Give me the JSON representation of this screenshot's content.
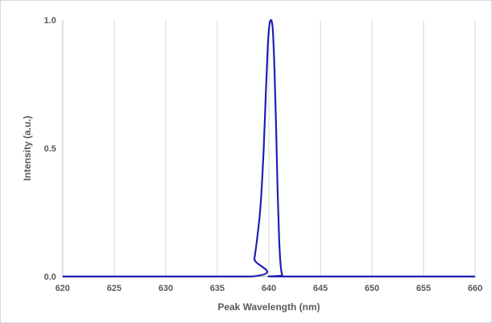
{
  "chart_data": {
    "type": "line",
    "title": "",
    "xlabel": "Peak Wavelength (nm)",
    "ylabel": "Intensity (a.u.)",
    "xlim": [
      620,
      660
    ],
    "ylim": [
      0,
      1.0
    ],
    "x_ticks": [
      "620",
      "625",
      "630",
      "635",
      "640",
      "645",
      "650",
      "655",
      "660"
    ],
    "y_ticks": [
      "0.0",
      "0.5",
      "1.0"
    ],
    "grid": "vertical",
    "legend": "none",
    "series_color": "#1f1fb4",
    "series": [
      {
        "x": [
          620,
          638.3,
          638.6,
          638.9,
          639.2,
          639.5,
          639.7,
          639.9,
          640.05,
          640.2,
          640.3,
          640.4,
          640.55,
          640.7,
          640.85,
          641.0,
          641.15,
          641.3,
          641.5,
          660
        ],
        "y": [
          0,
          0,
          0.07,
          0.16,
          0.28,
          0.5,
          0.71,
          0.9,
          0.98,
          1.0,
          0.99,
          0.95,
          0.8,
          0.58,
          0.33,
          0.14,
          0.04,
          0.005,
          0,
          0
        ]
      }
    ]
  }
}
